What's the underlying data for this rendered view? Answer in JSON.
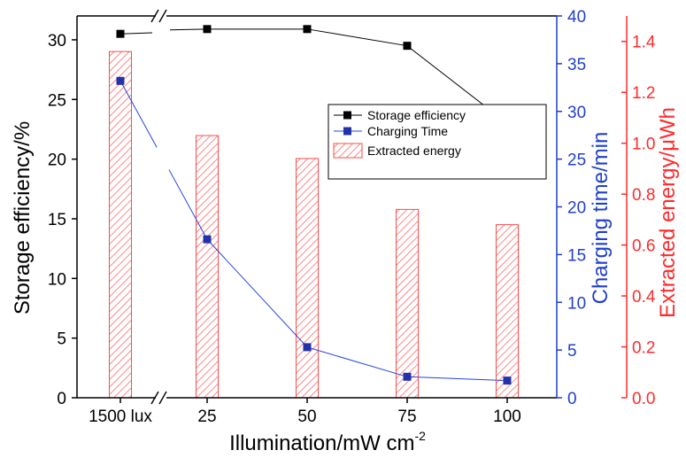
{
  "chart_data": {
    "type": "bar+line",
    "categories": [
      "1500 lux",
      "25",
      "50",
      "75",
      "100"
    ],
    "xlabel": "Illumination/mW cm",
    "xlabel_superscript": "-2",
    "axis_break": "between 1500 lux and 25",
    "left_axis": {
      "label": "Storage efficiency/%",
      "range": [
        0,
        32
      ],
      "ticks": [
        "0",
        "5",
        "10",
        "15",
        "20",
        "25",
        "30"
      ],
      "color": "#000000"
    },
    "right_axis_1": {
      "label": "Charging time/min",
      "range": [
        0,
        40
      ],
      "ticks": [
        "0",
        "5",
        "10",
        "15",
        "20",
        "25",
        "30",
        "35",
        "40"
      ],
      "color": "#1f3fcc"
    },
    "right_axis_2": {
      "label": "Extracted energy/μWh",
      "range": [
        0,
        1.5
      ],
      "ticks": [
        "0.0",
        "0.2",
        "0.4",
        "0.6",
        "0.8",
        "1.0",
        "1.2",
        "1.4"
      ],
      "color": "#ff2a2a"
    },
    "series": [
      {
        "name": "Storage efficiency",
        "type": "line",
        "axis": "left",
        "color": "#000000",
        "values": [
          30.5,
          30.9,
          30.9,
          29.5,
          23.0
        ]
      },
      {
        "name": "Charging Time",
        "type": "line",
        "axis": "right_1",
        "color": "#2244dd",
        "marker_color": "#2233aa",
        "values": [
          33.2,
          16.6,
          5.3,
          2.2,
          1.8
        ]
      },
      {
        "name": "Extracted energy",
        "type": "bar",
        "axis": "right_2",
        "color": "#ff5555",
        "pattern": "hatched",
        "values": [
          1.36,
          1.03,
          0.94,
          0.74,
          0.68
        ]
      }
    ],
    "legend_position": "center-right"
  }
}
